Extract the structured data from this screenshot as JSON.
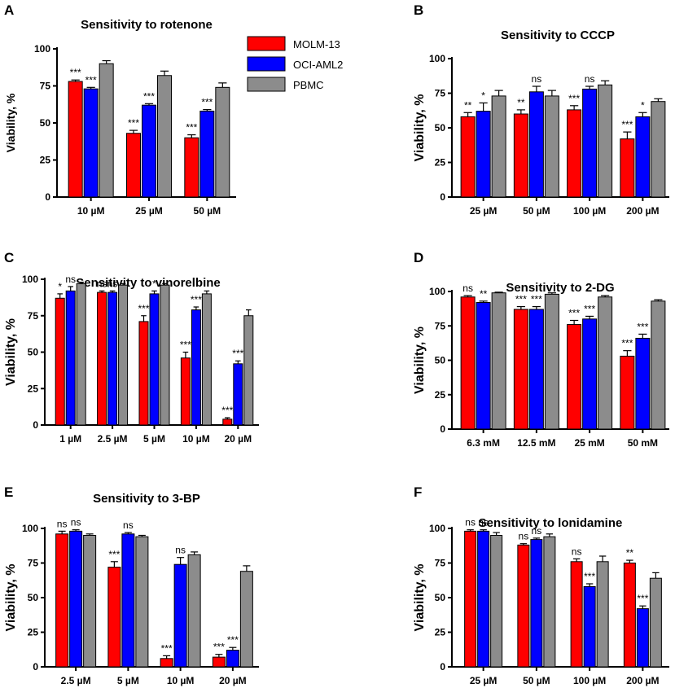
{
  "legend": {
    "series": [
      {
        "name": "MOLM-13",
        "color": "#ff0000"
      },
      {
        "name": "OCI-AML2",
        "color": "#0000ff"
      },
      {
        "name": "PBMC",
        "color": "#8c8c8c"
      }
    ]
  },
  "chart_data": [
    {
      "type": "bar",
      "panel": "A",
      "title": "Sensitivity to rotenone",
      "ylabel": "Viability, %",
      "ylim": [
        0,
        100
      ],
      "yticks": [
        0,
        25,
        50,
        75,
        100
      ],
      "categories": [
        "10 µM",
        "25 µM",
        "50 µM"
      ],
      "series": [
        {
          "name": "MOLM-13",
          "values": [
            78,
            43,
            40
          ],
          "errors": [
            1,
            2,
            2
          ],
          "sig": [
            "***",
            "***",
            "***"
          ]
        },
        {
          "name": "OCI-AML2",
          "values": [
            73,
            62,
            58
          ],
          "errors": [
            1,
            1,
            1
          ],
          "sig": [
            "***",
            "***",
            "***"
          ]
        },
        {
          "name": "PBMC",
          "values": [
            90,
            82,
            74
          ],
          "errors": [
            2,
            3,
            3
          ],
          "sig": [
            "",
            "",
            ""
          ]
        }
      ]
    },
    {
      "type": "bar",
      "panel": "B",
      "title": "Sensitivity to CCCP",
      "ylabel": "Viability, %",
      "ylim": [
        0,
        100
      ],
      "yticks": [
        0,
        25,
        50,
        75,
        100
      ],
      "categories": [
        "25 µM",
        "50 µM",
        "100 µM",
        "200 µM"
      ],
      "series": [
        {
          "name": "MOLM-13",
          "values": [
            58,
            60,
            63,
            42
          ],
          "errors": [
            3,
            3,
            3,
            5
          ],
          "sig": [
            "**",
            "**",
            "***",
            "***"
          ]
        },
        {
          "name": "OCI-AML2",
          "values": [
            62,
            76,
            78,
            58
          ],
          "errors": [
            6,
            4,
            2,
            3
          ],
          "sig": [
            "*",
            "ns",
            "ns",
            "*"
          ]
        },
        {
          "name": "PBMC",
          "values": [
            73,
            73,
            81,
            69
          ],
          "errors": [
            4,
            4,
            3,
            2
          ],
          "sig": [
            "",
            "",
            "",
            ""
          ]
        }
      ]
    },
    {
      "type": "bar",
      "panel": "C",
      "title": "Sensitivity to vinorelbine",
      "ylabel": "Viability, %",
      "ylim": [
        0,
        100
      ],
      "yticks": [
        0,
        25,
        50,
        75,
        100
      ],
      "categories": [
        "1 µM",
        "2.5 µM",
        "5 µM",
        "10 µM",
        "20 µM"
      ],
      "series": [
        {
          "name": "MOLM-13",
          "values": [
            87,
            91,
            71,
            46,
            4
          ],
          "errors": [
            3,
            1,
            4,
            4,
            1
          ],
          "sig": [
            "*",
            "ns",
            "***",
            "***",
            "***"
          ]
        },
        {
          "name": "OCI-AML2",
          "values": [
            92,
            91,
            90,
            79,
            42
          ],
          "errors": [
            3,
            1,
            2,
            2,
            2
          ],
          "sig": [
            "ns",
            "ns",
            "*",
            "***",
            "***"
          ]
        },
        {
          "name": "PBMC",
          "values": [
            97,
            96,
            96,
            90,
            75
          ],
          "errors": [
            1,
            1,
            1,
            2,
            4
          ],
          "sig": [
            "",
            "",
            "",
            "",
            ""
          ]
        }
      ]
    },
    {
      "type": "bar",
      "panel": "D",
      "title": "Sensitivity to 2-DG",
      "ylabel": "Viability, %",
      "ylim": [
        0,
        100
      ],
      "yticks": [
        0,
        25,
        50,
        75,
        100
      ],
      "categories": [
        "6.3 mM",
        "12.5 mM",
        "25 mM",
        "50 mM"
      ],
      "series": [
        {
          "name": "MOLM-13",
          "values": [
            96,
            87,
            76,
            53
          ],
          "errors": [
            1,
            2,
            3,
            4
          ],
          "sig": [
            "ns",
            "***",
            "***",
            "***"
          ]
        },
        {
          "name": "OCI-AML2",
          "values": [
            92,
            87,
            80,
            66
          ],
          "errors": [
            1,
            2,
            2,
            3
          ],
          "sig": [
            "**",
            "***",
            "***",
            "***"
          ]
        },
        {
          "name": "PBMC",
          "values": [
            99,
            98,
            96,
            93
          ],
          "errors": [
            0.5,
            1,
            1,
            1
          ],
          "sig": [
            "",
            "",
            "",
            ""
          ]
        }
      ]
    },
    {
      "type": "bar",
      "panel": "E",
      "title": "Sensitivity to 3-BP",
      "ylabel": "Viability, %",
      "ylim": [
        0,
        100
      ],
      "yticks": [
        0,
        25,
        50,
        75,
        100
      ],
      "categories": [
        "2.5 µM",
        "5 µM",
        "10 µM",
        "20 µM"
      ],
      "series": [
        {
          "name": "MOLM-13",
          "values": [
            96,
            72,
            6,
            7
          ],
          "errors": [
            2,
            4,
            2,
            2
          ],
          "sig": [
            "ns",
            "***",
            "***",
            "***"
          ]
        },
        {
          "name": "OCI-AML2",
          "values": [
            98,
            96,
            74,
            12
          ],
          "errors": [
            1,
            1,
            5,
            2
          ],
          "sig": [
            "ns",
            "ns",
            "ns",
            "***"
          ]
        },
        {
          "name": "PBMC",
          "values": [
            95,
            94,
            81,
            69
          ],
          "errors": [
            1,
            1,
            2,
            4
          ],
          "sig": [
            "",
            "",
            "",
            ""
          ]
        }
      ]
    },
    {
      "type": "bar",
      "panel": "F",
      "title": "Sensitivity to lonidamine",
      "ylabel": "Viability, %",
      "ylim": [
        0,
        100
      ],
      "yticks": [
        0,
        25,
        50,
        75,
        100
      ],
      "categories": [
        "25 µM",
        "50 µM",
        "100 µM",
        "200 µM"
      ],
      "series": [
        {
          "name": "MOLM-13",
          "values": [
            98,
            88,
            76,
            75
          ],
          "errors": [
            1,
            1,
            2,
            2
          ],
          "sig": [
            "ns",
            "ns",
            "ns",
            "**"
          ]
        },
        {
          "name": "OCI-AML2",
          "values": [
            98,
            92,
            58,
            42
          ],
          "errors": [
            1,
            1,
            2,
            2
          ],
          "sig": [
            "ns",
            "ns",
            "***",
            "***"
          ]
        },
        {
          "name": "PBMC",
          "values": [
            95,
            94,
            76,
            64
          ],
          "errors": [
            2,
            2,
            4,
            4
          ],
          "sig": [
            "",
            "",
            "",
            ""
          ]
        }
      ]
    }
  ]
}
